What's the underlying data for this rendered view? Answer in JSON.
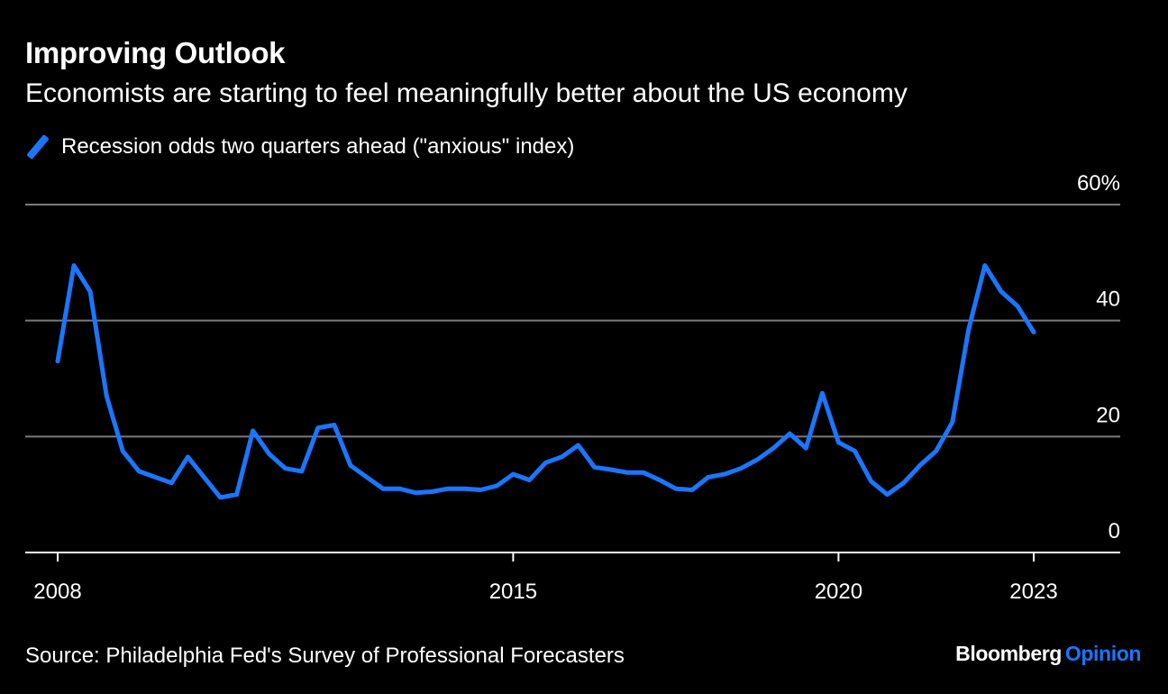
{
  "header": {
    "title": "Improving Outlook",
    "subtitle": "Economists are starting to feel meaningfully better about the US economy"
  },
  "footer": {
    "source": "Source: Philadelphia Fed's Survey of Professional Forecasters",
    "brand_1": "Bloomberg",
    "brand_2": "Opinion"
  },
  "colors": {
    "series": "#1a76ff",
    "grid": "#7a7a7a",
    "background": "#000000"
  },
  "chart_data": {
    "type": "line",
    "title": "Improving Outlook",
    "subtitle": "Economists are starting to feel meaningfully better about the US economy",
    "xlabel": "",
    "ylabel": "",
    "ylim": [
      0,
      60
    ],
    "xlim": [
      2007.5,
      2025.0
    ],
    "grid": true,
    "legend": "top-left",
    "y_ticks": [
      0,
      20,
      40,
      60
    ],
    "y_tick_labels": [
      "0",
      "20",
      "40",
      "60%"
    ],
    "x_ticks": [
      2008,
      2015,
      2020,
      2023
    ],
    "x_tick_labels": [
      "2008",
      "2015",
      "2020",
      "2023"
    ],
    "series": [
      {
        "name": "Recession odds two quarters ahead (\"anxious\" index)",
        "x": [
          2008.0,
          2008.25,
          2008.5,
          2008.75,
          2009.0,
          2009.25,
          2009.5,
          2009.75,
          2010.0,
          2010.25,
          2010.5,
          2010.75,
          2011.0,
          2011.25,
          2011.5,
          2011.75,
          2012.0,
          2012.25,
          2012.5,
          2012.75,
          2013.0,
          2013.25,
          2013.5,
          2013.75,
          2014.0,
          2014.25,
          2014.5,
          2014.75,
          2015.0,
          2015.25,
          2015.5,
          2015.75,
          2016.0,
          2016.25,
          2016.5,
          2016.75,
          2017.0,
          2017.25,
          2017.5,
          2017.75,
          2018.0,
          2018.25,
          2018.5,
          2018.75,
          2019.0,
          2019.25,
          2019.5,
          2019.75,
          2020.0,
          2020.25,
          2020.5,
          2020.75,
          2021.0,
          2021.25,
          2021.5,
          2021.75,
          2022.0,
          2022.25,
          2022.5,
          2022.75,
          2023.0
        ],
        "values": [
          33.0,
          49.5,
          45.0,
          27.0,
          17.5,
          14.0,
          13.0,
          12.0,
          16.5,
          13.0,
          9.5,
          10.0,
          21.0,
          17.0,
          14.5,
          14.0,
          21.5,
          22.0,
          15.0,
          13.0,
          11.0,
          11.0,
          10.3,
          10.5,
          11.0,
          11.0,
          10.8,
          11.5,
          13.5,
          12.5,
          15.5,
          16.5,
          18.5,
          14.7,
          14.3,
          13.8,
          13.8,
          12.5,
          11.0,
          10.8,
          13.0,
          13.5,
          14.5,
          16.0,
          18.0,
          20.5,
          18.0,
          27.5,
          19.0,
          17.5,
          12.3,
          10.0,
          12.0,
          15.0,
          17.5,
          22.5,
          38.5,
          49.5,
          45.0,
          42.5,
          38.0
        ]
      }
    ]
  }
}
